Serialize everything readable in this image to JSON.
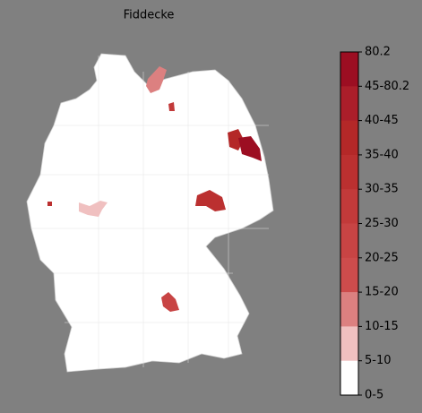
{
  "title": "Fiddecke",
  "colorbar": {
    "labels": [
      "80.2",
      "45-80.2",
      "40-45",
      "35-40",
      "30-35",
      "25-30",
      "20-25",
      "15-20",
      "10-15",
      "5-10",
      "0-5"
    ],
    "colors": [
      "#9c0e22",
      "#ab1e2a",
      "#b42828",
      "#bb3030",
      "#c23a3a",
      "#c84444",
      "#cd4c4c",
      "#dc8080",
      "#f0c0c0",
      "#ffffff"
    ]
  }
}
